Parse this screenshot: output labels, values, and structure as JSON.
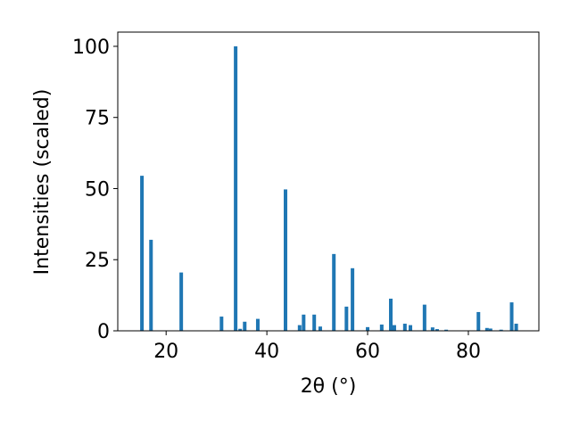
{
  "chart_data": {
    "type": "bar",
    "x": [
      15.2,
      17.0,
      23.0,
      31.0,
      33.8,
      34.7,
      35.6,
      38.2,
      43.7,
      46.5,
      47.3,
      49.4,
      50.6,
      53.3,
      55.8,
      57.0,
      60.0,
      62.8,
      64.6,
      65.3,
      67.4,
      68.5,
      71.3,
      72.9,
      73.8,
      75.6,
      82.0,
      83.7,
      84.4,
      86.5,
      88.6,
      89.5
    ],
    "values": [
      54.5,
      32,
      20.5,
      5,
      100,
      0.7,
      3.2,
      4.2,
      49.7,
      2,
      5.7,
      5.7,
      1.5,
      27,
      8.5,
      22,
      1.3,
      2.2,
      11.3,
      2,
      2.5,
      2,
      9.2,
      1.2,
      0.6,
      0.4,
      6.6,
      1.0,
      0.8,
      0.4,
      10,
      2.5
    ],
    "color": "#1f77b4",
    "xlabel": "2θ (°)",
    "ylabel": "Intensities (scaled)",
    "xlim": [
      10.4,
      94
    ],
    "xticks": [
      20,
      40,
      60,
      80
    ],
    "ylim": [
      0,
      105
    ],
    "yticks": [
      0,
      25,
      50,
      75,
      100
    ]
  }
}
